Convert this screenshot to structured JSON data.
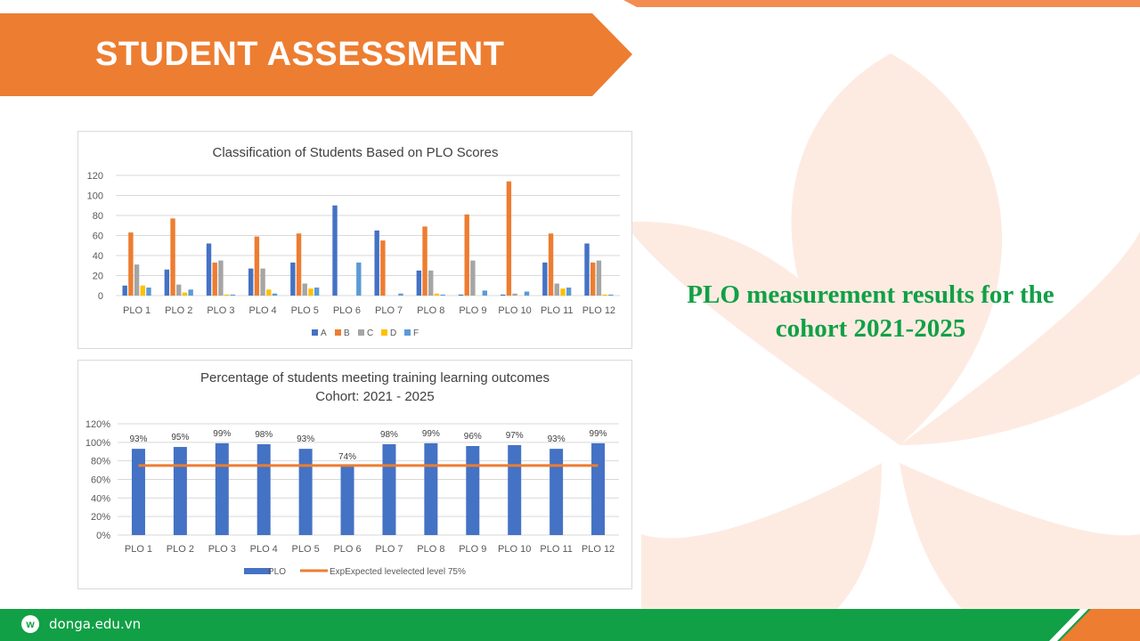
{
  "header": {
    "title": "STUDENT ASSESSMENT"
  },
  "side_caption": {
    "line1": "PLO measurement results for the",
    "line2": "cohort 2021-2025"
  },
  "footer": {
    "logo_letter": "w",
    "site": "donga.edu.vn"
  },
  "colors": {
    "brand_orange": "#ed7d31",
    "brand_green": "#11a046",
    "series_A": "#4472c4",
    "series_B": "#ed7d31",
    "series_C": "#a5a5a5",
    "series_D": "#ffc000",
    "series_F": "#5b9bd5"
  },
  "chart_data": [
    {
      "type": "bar",
      "title": "Classification of Students Based on PLO Scores",
      "categories": [
        "PLO 1",
        "PLO 2",
        "PLO 3",
        "PLO 4",
        "PLO 5",
        "PLO 6",
        "PLO 7",
        "PLO 8",
        "PLO 9",
        "PLO 10",
        "PLO 11",
        "PLO 12"
      ],
      "series": [
        {
          "name": "A",
          "values": [
            10,
            26,
            52,
            27,
            33,
            90,
            65,
            25,
            1,
            1,
            33,
            52
          ]
        },
        {
          "name": "B",
          "values": [
            63,
            77,
            33,
            59,
            62,
            0,
            55,
            69,
            81,
            114,
            62,
            33
          ]
        },
        {
          "name": "C",
          "values": [
            31,
            11,
            35,
            27,
            12,
            0,
            0,
            25,
            35,
            2,
            12,
            35
          ]
        },
        {
          "name": "D",
          "values": [
            10,
            3,
            1,
            6,
            7,
            0,
            0,
            2,
            0,
            0,
            7,
            1
          ]
        },
        {
          "name": "F",
          "values": [
            8,
            6,
            1,
            2,
            8,
            33,
            2,
            1,
            5,
            4,
            8,
            1
          ]
        }
      ],
      "ylim": [
        0,
        120
      ],
      "yticks": [
        0,
        20,
        40,
        60,
        80,
        100,
        120
      ],
      "grid": true,
      "legend": "bottom"
    },
    {
      "type": "bar",
      "title": "Percentage of students meeting training learning outcomes",
      "subtitle": "Cohort: 2021 - 2025",
      "categories": [
        "PLO 1",
        "PLO 2",
        "PLO 3",
        "PLO 4",
        "PLO 5",
        "PLO 6",
        "PLO 7",
        "PLO 8",
        "PLO 9",
        "PLO 10",
        "PLO 11",
        "PLO 12"
      ],
      "series": [
        {
          "name": "PLO",
          "values": [
            93,
            95,
            99,
            98,
            93,
            74,
            98,
            99,
            96,
            97,
            93,
            99
          ],
          "labels": [
            "93%",
            "95%",
            "99%",
            "98%",
            "93%",
            "74%",
            "98%",
            "99%",
            "96%",
            "97%",
            "93%",
            "99%"
          ]
        },
        {
          "name": "ExpExpected levelected level 75%",
          "type": "line",
          "values": [
            75,
            75,
            75,
            75,
            75,
            75,
            75,
            75,
            75,
            75,
            75,
            75
          ]
        }
      ],
      "yticks": [
        "0%",
        "20%",
        "40%",
        "60%",
        "80%",
        "100%",
        "120%"
      ],
      "ylim": [
        0,
        120
      ],
      "grid": true,
      "legend": "bottom"
    }
  ]
}
